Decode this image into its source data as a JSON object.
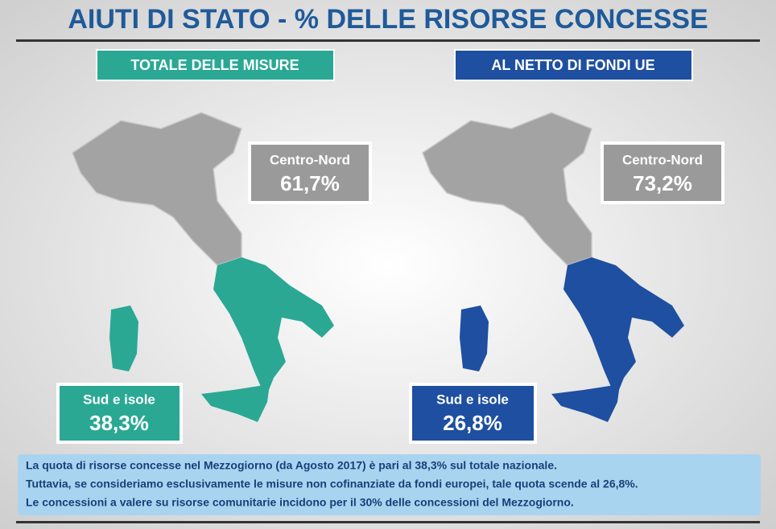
{
  "title": "AIUTI DI STATO - % DELLE RISORSE CONCESSE",
  "panels": [
    {
      "heading": "TOTALE DELLE MISURE",
      "north_label": "Centro-Nord",
      "north_value": "61,7%",
      "south_label": "Sud e isole",
      "south_value": "38,3%"
    },
    {
      "heading": "AL NETTO DI FONDI UE",
      "north_label": "Centro-Nord",
      "north_value": "73,2%",
      "south_label": "Sud e isole",
      "south_value": "26,8%"
    }
  ],
  "note": {
    "lines": [
      "La quota di risorse concesse nel Mezzogiorno (da Agosto 2017) è pari al 38,3% sul totale nazionale.",
      "Tuttavia, se consideriamo esclusivamente le misure non cofinanziate da fondi europei, tale quota scende al 26,8%.",
      "Le concessioni a valere su risorse comunitarie incidono per il 30% delle concessioni del Mezzogiorno."
    ]
  }
}
